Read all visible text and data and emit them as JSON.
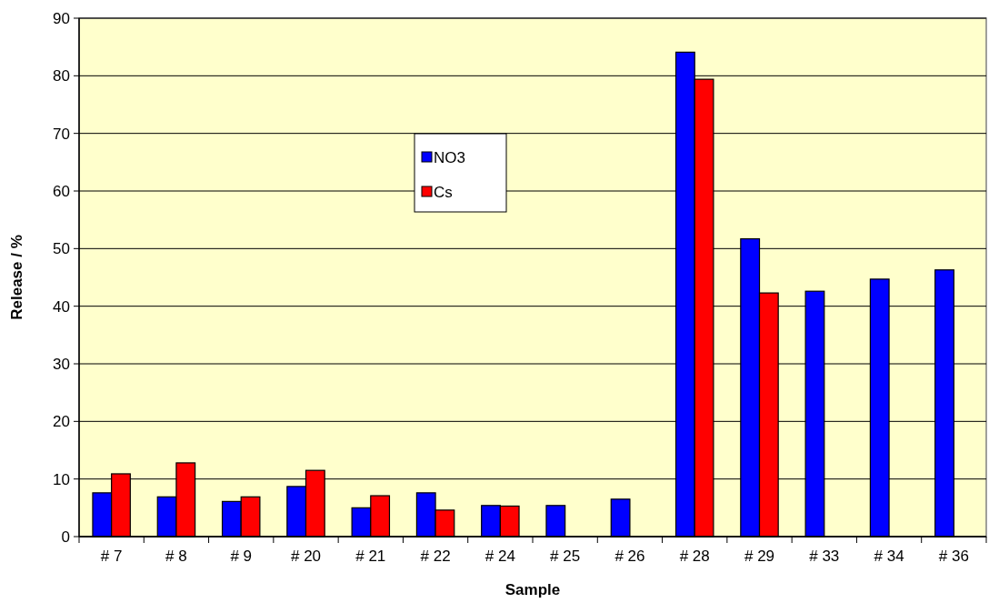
{
  "chart_data": {
    "type": "bar",
    "xlabel": "Sample",
    "ylabel": "Release / %",
    "categories": [
      "# 7",
      "# 8",
      "# 9",
      "# 20",
      "# 21",
      "# 22",
      "# 24",
      "# 25",
      "# 26",
      "# 28",
      "# 29",
      "# 33",
      "# 34",
      "# 36"
    ],
    "series": [
      {
        "name": "NO3",
        "color": "#0000ff",
        "values": [
          7.6,
          6.9,
          6.1,
          8.7,
          5.0,
          7.6,
          5.4,
          5.4,
          6.5,
          84.1,
          51.7,
          42.6,
          44.7,
          46.3
        ]
      },
      {
        "name": "Cs",
        "color": "#ff0000",
        "values": [
          10.9,
          12.8,
          6.9,
          11.5,
          7.1,
          4.6,
          5.3,
          null,
          null,
          79.4,
          42.3,
          null,
          null,
          null
        ]
      }
    ],
    "ylim": [
      0,
      90
    ],
    "yticks": [
      0,
      10,
      20,
      30,
      40,
      50,
      60,
      70,
      80,
      90
    ],
    "grid": "y",
    "legend": "top"
  }
}
